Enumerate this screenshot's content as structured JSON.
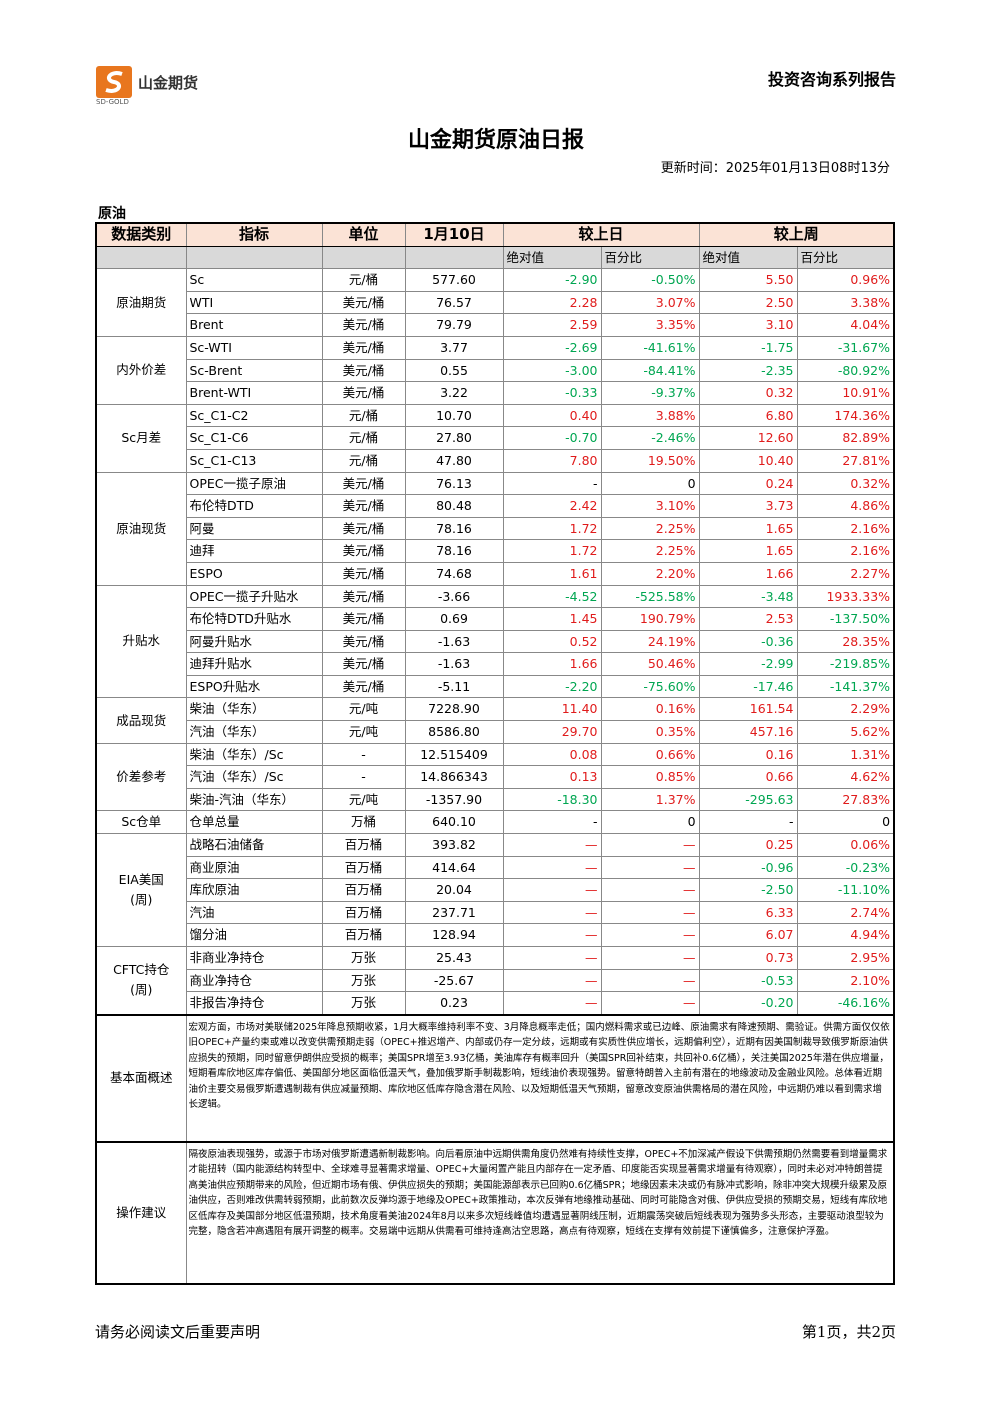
{
  "header": {
    "logo_name": "山金期货",
    "logo_en": "SD-GOLD",
    "series": "投资咨询系列报告",
    "title": "山金期货原油日报",
    "update_time": "更新时间：2025年01月13日08时13分"
  },
  "table": {
    "section": "原油",
    "columns": [
      "数据类别",
      "指标",
      "单位",
      "1月10日",
      "较上日",
      "较上周"
    ],
    "subcolumns": [
      "绝对值",
      "百分比",
      "绝对值",
      "百分比"
    ],
    "groups": [
      {
        "label": [
          "原油期货"
        ],
        "rows": [
          [
            "Sc",
            "元/桶",
            "577.60",
            "-2.90",
            "-0.50%",
            "5.50",
            "0.96%"
          ],
          [
            "WTI",
            "美元/桶",
            "76.57",
            "2.28",
            "3.07%",
            "2.50",
            "3.38%"
          ],
          [
            "Brent",
            "美元/桶",
            "79.79",
            "2.59",
            "3.35%",
            "3.10",
            "4.04%"
          ]
        ]
      },
      {
        "label": [
          "内外价差"
        ],
        "rows": [
          [
            "Sc-WTI",
            "美元/桶",
            "3.77",
            "-2.69",
            "-41.61%",
            "-1.75",
            "-31.67%"
          ],
          [
            "Sc-Brent",
            "美元/桶",
            "0.55",
            "-3.00",
            "-84.41%",
            "-2.35",
            "-80.92%"
          ],
          [
            "Brent-WTI",
            "美元/桶",
            "3.22",
            "-0.33",
            "-9.37%",
            "0.32",
            "10.91%"
          ]
        ]
      },
      {
        "label": [
          "Sc月差"
        ],
        "rows": [
          [
            "Sc_C1-C2",
            "元/桶",
            "10.70",
            "0.40",
            "3.88%",
            "6.80",
            "174.36%"
          ],
          [
            "Sc_C1-C6",
            "元/桶",
            "27.80",
            "-0.70",
            "-2.46%",
            "12.60",
            "82.89%"
          ],
          [
            "Sc_C1-C13",
            "元/桶",
            "47.80",
            "7.80",
            "19.50%",
            "10.40",
            "27.81%"
          ]
        ]
      },
      {
        "label": [
          "原油现货"
        ],
        "rows": [
          [
            "OPEC一揽子原油",
            "美元/桶",
            "76.13",
            "-",
            "0",
            "0.24",
            "0.32%"
          ],
          [
            "布伦特DTD",
            "美元/桶",
            "80.48",
            "2.42",
            "3.10%",
            "3.73",
            "4.86%"
          ],
          [
            "阿曼",
            "美元/桶",
            "78.16",
            "1.72",
            "2.25%",
            "1.65",
            "2.16%"
          ],
          [
            "迪拜",
            "美元/桶",
            "78.16",
            "1.72",
            "2.25%",
            "1.65",
            "2.16%"
          ],
          [
            "ESPO",
            "美元/桶",
            "74.68",
            "1.61",
            "2.20%",
            "1.66",
            "2.27%"
          ]
        ]
      },
      {
        "label": [
          "升贴水"
        ],
        "rows": [
          [
            "OPEC一揽子升贴水",
            "美元/桶",
            "-3.66",
            "-4.52",
            "-525.58%",
            "-3.48",
            "1933.33%"
          ],
          [
            "布伦特DTD升贴水",
            "美元/桶",
            "0.69",
            "1.45",
            "190.79%",
            "2.53",
            "-137.50%"
          ],
          [
            "阿曼升贴水",
            "美元/桶",
            "-1.63",
            "0.52",
            "24.19%",
            "-0.36",
            "28.35%"
          ],
          [
            "迪拜升贴水",
            "美元/桶",
            "-1.63",
            "1.66",
            "50.46%",
            "-2.99",
            "-219.85%"
          ],
          [
            "ESPO升贴水",
            "美元/桶",
            "-5.11",
            "-2.20",
            "-75.60%",
            "-17.46",
            "-141.37%"
          ]
        ]
      },
      {
        "label": [
          "成品现货"
        ],
        "rows": [
          [
            "柴油（华东）",
            "元/吨",
            "7228.90",
            "11.40",
            "0.16%",
            "161.54",
            "2.29%"
          ],
          [
            "汽油（华东）",
            "元/吨",
            "8586.80",
            "29.70",
            "0.35%",
            "457.16",
            "5.62%"
          ]
        ]
      },
      {
        "label": [
          "价差参考"
        ],
        "rows": [
          [
            "柴油（华东）/Sc",
            "-",
            "12.515409",
            "0.08",
            "0.66%",
            "0.16",
            "1.31%"
          ],
          [
            "汽油（华东）/Sc",
            "-",
            "14.866343",
            "0.13",
            "0.85%",
            "0.66",
            "4.62%"
          ],
          [
            "柴油-汽油（华东）",
            "元/吨",
            "-1357.90",
            "-18.30",
            "1.37%",
            "-295.63",
            "27.83%"
          ]
        ]
      },
      {
        "label": [
          "Sc仓单"
        ],
        "rows": [
          [
            "仓单总量",
            "万桶",
            "640.10",
            "-",
            "0",
            "-",
            "0"
          ]
        ]
      },
      {
        "label": [
          "EIA美国",
          "(周)"
        ],
        "rows": [
          [
            "战略石油储备",
            "百万桶",
            "393.82",
            "—",
            "—",
            "0.25",
            "0.06%"
          ],
          [
            "商业原油",
            "百万桶",
            "414.64",
            "—",
            "—",
            "-0.96",
            "-0.23%"
          ],
          [
            "库欣原油",
            "百万桶",
            "20.04",
            "—",
            "—",
            "-2.50",
            "-11.10%"
          ],
          [
            "汽油",
            "百万桶",
            "237.71",
            "—",
            "—",
            "6.33",
            "2.74%"
          ],
          [
            "馏分油",
            "百万桶",
            "128.94",
            "—",
            "—",
            "6.07",
            "4.94%"
          ]
        ]
      },
      {
        "label": [
          "CFTC持仓",
          "(周)"
        ],
        "rows": [
          [
            "非商业净持仓",
            "万张",
            "25.43",
            "—",
            "—",
            "0.73",
            "2.95%"
          ],
          [
            "商业净持仓",
            "万张",
            "-25.67",
            "—",
            "—",
            "-0.53",
            "2.10%"
          ],
          [
            "非报告净持仓",
            "万张",
            "0.23",
            "—",
            "—",
            "-0.20",
            "-46.16%"
          ]
        ]
      }
    ],
    "notes": [
      {
        "label": "基本面概述",
        "text": "宏观方面，市场对美联储2025年降息预期收紧，1月大概率维持利率不变、3月降息概率走低；国内燃料需求或已边峰、原油需求有降速预期、需验证。供需方面仅仅依旧OPEC+产量约束或难以改变供需预期走弱（OPEC+推迟增产、内部或仍存一定分歧，远期或有实质性供应增长，远期偏利空），近期有因美国制裁导致俄罗斯原油供应损失的预期，同时留意伊朗供应受损的概率；美国SPR增至3.93亿桶，美油库存有概率回升（美国SPR回补结束，共回补0.6亿桶），关注美国2025年潜在供应增量，短期看库欣地区库存偏低、美国部分地区面临低温天气，叠加俄罗斯手制裁影响，短线油价表现强势。留意特朗普入主前有潜在的地缘波动及金融业风险。总体看近期油价主要交易俄罗斯遭遇制裁有供应减量预期、库欣地区低库存隐含潜在风险、以及短期低温天气预期，留意改变原油供需格局的潜在风险，中远期仍难以看到需求增长逻辑。"
      },
      {
        "label": "操作建议",
        "text": "隔夜原油表现强势，或源于市场对俄罗斯遭遇新制裁影响。向后看原油中远期供需角度仍然难有持续性支撑，OPEC+不加深减产假设下供需预期仍然需要看到增量需求才能扭转（国内能源结构转型中、全球难寻显著需求增量、OPEC+大量闲置产能且内部存在一定矛盾、印度能否实现显著需求增量有待观察），同时未必对冲特朗普提高美油供应预期带来的风险，但近期市场有俄、伊供应损失的预期；美国能源部表示已回购0.6亿桶SPR；地缘因素未决或仍有脉冲式影响，除非冲突大规模升级累及原油供应，否则难改供需转弱预期，此前数次反弹均源于地缘及OPEC+政策推动，本次反弹有地缘推动基础、同时可能隐含对俄、伊供应受损的预期交易，短线有库欣地区低库存及美国部分地区低温预期，技术角度看美油2024年8月以来多次短线峰值均遭遇显著阴线压制，近期震荡突破后短线表现为强势多头形态，主要驱动浪型较为完整，隐含若冲高遇阻有展开调整的概率。交易端中远期从供需看可维持逢高沽空思路，高点有待观察，短线在支撑有效前提下谨慎偏多，注意保护浮盈。"
      }
    ]
  },
  "footer": {
    "left": "请务必阅读文后重要声明",
    "right": "第1页，共2页"
  }
}
